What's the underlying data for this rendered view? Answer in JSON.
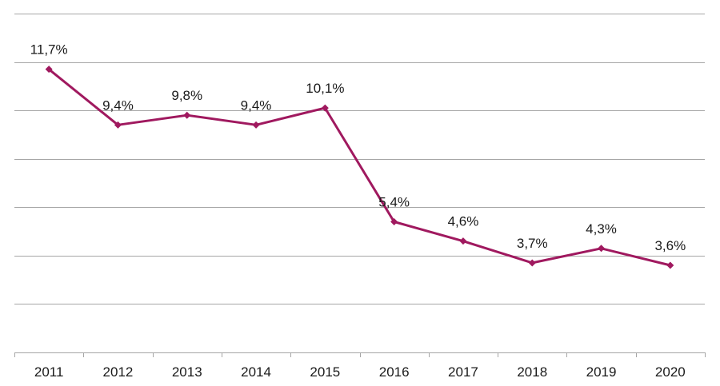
{
  "chart_data": {
    "type": "line",
    "title": "",
    "xlabel": "",
    "ylabel": "",
    "categories": [
      "2011",
      "2012",
      "2013",
      "2014",
      "2015",
      "2016",
      "2017",
      "2018",
      "2019",
      "2020"
    ],
    "series": [
      {
        "values": [
          11.7,
          9.4,
          9.8,
          9.4,
          10.1,
          5.4,
          4.6,
          3.7,
          4.3,
          3.6
        ],
        "labels": [
          "11,7%",
          "9,4%",
          "9,8%",
          "9,4%",
          "10,1%",
          "5,4%",
          "4,6%",
          "3,7%",
          "4,3%",
          "3,6%"
        ],
        "color": "#a0195f",
        "marker": "diamond"
      }
    ],
    "ylim": [
      0,
      14
    ],
    "grid": true,
    "gridline_step": 2,
    "y_tick_labels_visible": false,
    "legend": "none",
    "colors": {
      "grid": "#a6a6a6",
      "text": "#1a1a1a"
    }
  }
}
